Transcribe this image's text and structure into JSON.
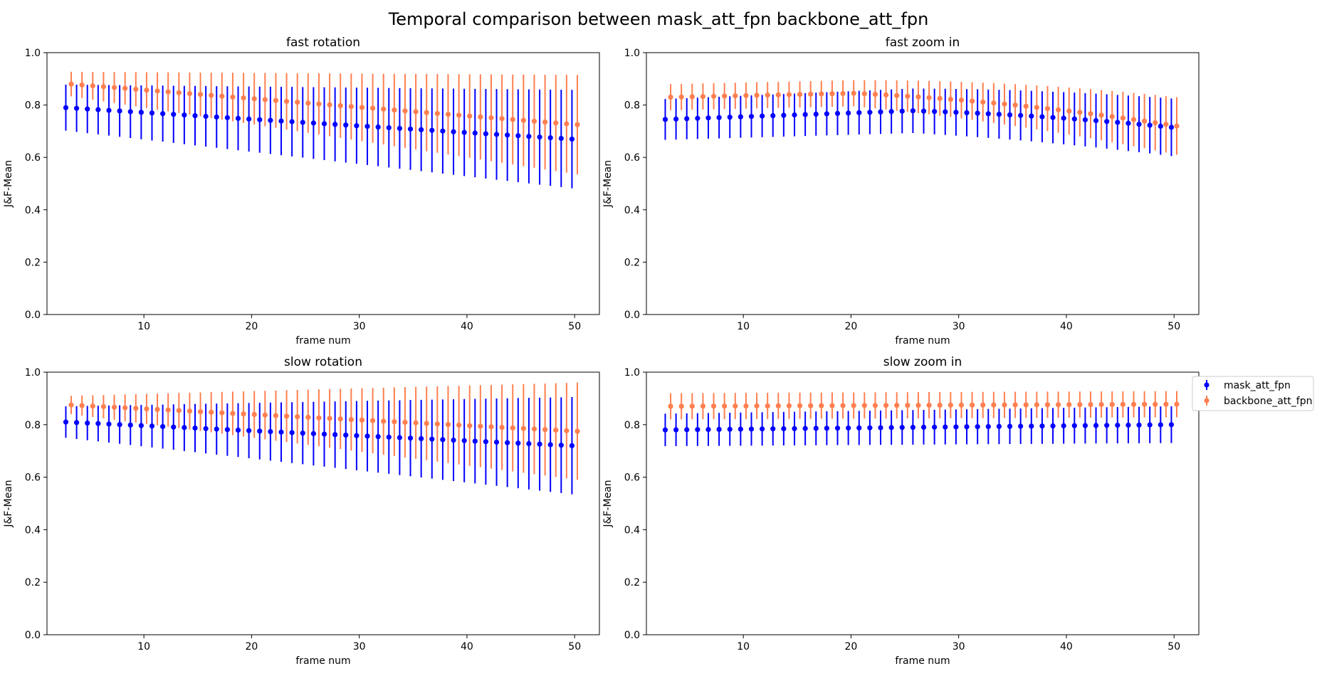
{
  "figure": {
    "title": "Temporal comparison between mask_att_fpn backbone_att_fpn"
  },
  "legend": {
    "placement": "right, beside lower-right panel",
    "entries": [
      {
        "label": "mask_att_fpn",
        "color": "#0000ff"
      },
      {
        "label": "backbone_att_fpn",
        "color": "#ff7f50"
      }
    ]
  },
  "chart_data": [
    {
      "type": "errorbar",
      "title": "fast rotation",
      "xlabel": "frame num",
      "ylabel": "J&F-Mean",
      "xlim": [
        1,
        52.3
      ],
      "ylim": [
        0,
        1
      ],
      "xticks": [
        10,
        20,
        30,
        40,
        50
      ],
      "yticks": [
        0.0,
        0.2,
        0.4,
        0.6,
        0.8,
        1.0
      ],
      "grid": false,
      "x_start": 3,
      "x_end": 50,
      "series": [
        {
          "name": "mask_att_fpn",
          "mean_start": 0.79,
          "mean_end": 0.67,
          "err_start": 0.088,
          "err_end": 0.188,
          "x_offset": -0.25
        },
        {
          "name": "backbone_att_fpn",
          "mean_start": 0.88,
          "mean_end": 0.725,
          "err_start": 0.047,
          "err_end": 0.19,
          "x_offset": 0.25
        }
      ]
    },
    {
      "type": "errorbar",
      "title": "fast zoom in",
      "xlabel": "frame num",
      "ylabel": "J&F-Mean",
      "xlim": [
        1,
        52.3
      ],
      "ylim": [
        0,
        1
      ],
      "xticks": [
        10,
        20,
        30,
        40,
        50
      ],
      "yticks": [
        0.0,
        0.2,
        0.4,
        0.6,
        0.8,
        1.0
      ],
      "grid": false,
      "x_start": 3,
      "x_end": 50,
      "series": [
        {
          "name": "mask_att_fpn",
          "mean_peak_x": 26,
          "mean_start": 0.745,
          "mean_peak": 0.778,
          "mean_end": 0.715,
          "err_start": 0.078,
          "err_peak": 0.085,
          "err_end": 0.11,
          "x_offset": -0.25
        },
        {
          "name": "backbone_att_fpn",
          "mean_peak_x": 20,
          "mean_start": 0.83,
          "mean_peak": 0.845,
          "mean_end": 0.72,
          "err_start": 0.05,
          "err_peak": 0.05,
          "err_end": 0.11,
          "x_offset": 0.25
        }
      ]
    },
    {
      "type": "errorbar",
      "title": "slow rotation",
      "xlabel": "frame num",
      "ylabel": "J&F-Mean",
      "xlim": [
        1,
        52.3
      ],
      "ylim": [
        0,
        1
      ],
      "xticks": [
        10,
        20,
        30,
        40,
        50
      ],
      "yticks": [
        0.0,
        0.2,
        0.4,
        0.6,
        0.8,
        1.0
      ],
      "grid": false,
      "x_start": 3,
      "x_end": 50,
      "series": [
        {
          "name": "mask_att_fpn",
          "mean_start": 0.81,
          "mean_end": 0.72,
          "err_start": 0.06,
          "err_end": 0.185,
          "x_offset": -0.25
        },
        {
          "name": "backbone_att_fpn",
          "mean_start": 0.875,
          "mean_end": 0.775,
          "err_start": 0.035,
          "err_end": 0.185,
          "x_offset": 0.25
        }
      ]
    },
    {
      "type": "errorbar",
      "title": "slow zoom in",
      "xlabel": "frame num",
      "ylabel": "J&F-Mean",
      "xlim": [
        1,
        52.3
      ],
      "ylim": [
        0,
        1
      ],
      "xticks": [
        10,
        20,
        30,
        40,
        50
      ],
      "yticks": [
        0.0,
        0.2,
        0.4,
        0.6,
        0.8,
        1.0
      ],
      "grid": false,
      "x_start": 3,
      "x_end": 50,
      "series": [
        {
          "name": "mask_att_fpn",
          "mean_start": 0.78,
          "mean_end": 0.8,
          "err_start": 0.062,
          "err_end": 0.07,
          "x_offset": -0.25
        },
        {
          "name": "backbone_att_fpn",
          "mean_start": 0.87,
          "mean_end": 0.878,
          "err_start": 0.05,
          "err_end": 0.05,
          "x_offset": 0.25
        }
      ]
    }
  ]
}
